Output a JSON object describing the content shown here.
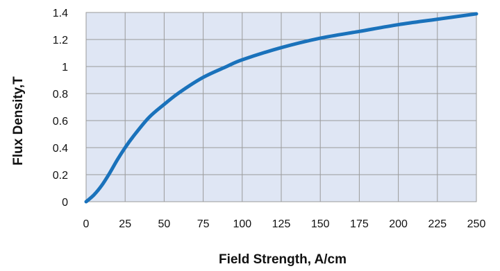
{
  "chart_data": {
    "type": "line",
    "title": "",
    "xlabel": "Field Strength, A/cm",
    "ylabel": "Flux Density,T",
    "xlim": [
      0,
      250
    ],
    "ylim": [
      0,
      1.4
    ],
    "x_ticks": [
      0,
      25,
      50,
      75,
      100,
      125,
      150,
      175,
      200,
      225,
      250
    ],
    "y_ticks": [
      0,
      0.2,
      0.4,
      0.6,
      0.8,
      1,
      1.2,
      1.4
    ],
    "x_tick_labels": [
      "0",
      "25",
      "50",
      "75",
      "100",
      "125",
      "150",
      "175",
      "200",
      "225",
      "250"
    ],
    "y_tick_labels": [
      "0",
      "0.2",
      "0.4",
      "0.6",
      "0.8",
      "1",
      "1.2",
      "1.4"
    ],
    "grid": true,
    "legend": "none",
    "series": [
      {
        "color": "#1a72bb",
        "x": [
          0,
          5,
          10,
          15,
          20,
          25,
          30,
          40,
          50,
          60,
          75,
          90,
          100,
          125,
          150,
          175,
          200,
          225,
          250
        ],
        "y": [
          0,
          0.05,
          0.12,
          0.21,
          0.31,
          0.4,
          0.48,
          0.62,
          0.72,
          0.81,
          0.92,
          1.0,
          1.05,
          1.14,
          1.21,
          1.26,
          1.31,
          1.35,
          1.39
        ]
      }
    ],
    "plot_background": "#dfe6f4",
    "grid_color": "#9a9a9a"
  }
}
